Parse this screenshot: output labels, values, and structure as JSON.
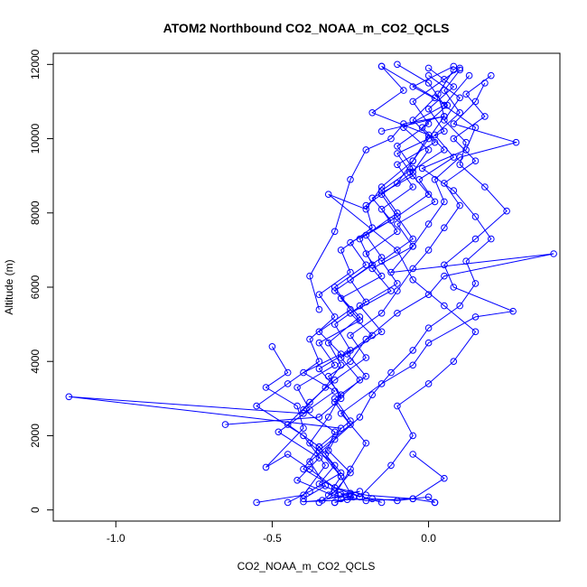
{
  "chart_data": {
    "type": "line",
    "title": "ATOM2 Northbound CO2_NOAA_m_CO2_QCLS",
    "xlabel": "CO2_NOAA_m_CO2_QCLS",
    "ylabel": "Altitude (m)",
    "xlim": [
      -1.2,
      0.42
    ],
    "ylim": [
      -300,
      12300
    ],
    "x_ticks": [
      -1.0,
      -0.5,
      0.0
    ],
    "x_tick_labels": [
      "-1.0",
      "-0.5",
      "0.0"
    ],
    "y_ticks": [
      0,
      2000,
      4000,
      6000,
      8000,
      10000,
      12000
    ],
    "y_tick_labels": [
      "0",
      "2000",
      "4000",
      "6000",
      "8000",
      "10000",
      "12000"
    ],
    "grid": false,
    "marker": "open-circle",
    "line_color": "#0000ff",
    "series": [
      {
        "values": [
          [
            -0.3,
            200
          ],
          [
            -0.25,
            350
          ],
          [
            -0.35,
            700
          ],
          [
            -0.3,
            1200
          ],
          [
            -0.38,
            1800
          ],
          [
            -0.32,
            2500
          ],
          [
            -0.28,
            3100
          ],
          [
            -0.35,
            3800
          ],
          [
            -0.25,
            4300
          ],
          [
            -0.3,
            5000
          ],
          [
            -0.2,
            5600
          ],
          [
            -0.25,
            6200
          ],
          [
            -0.15,
            6800
          ],
          [
            -0.2,
            7400
          ],
          [
            -0.1,
            8000
          ],
          [
            -0.15,
            8600
          ],
          [
            -0.05,
            9200
          ],
          [
            -0.1,
            9800
          ],
          [
            0.0,
            10400
          ],
          [
            -0.05,
            11000
          ],
          [
            0.05,
            11600
          ],
          [
            0.1,
            11900
          ]
        ]
      },
      {
        "values": [
          [
            0.02,
            200
          ],
          [
            -0.05,
            300
          ],
          [
            -0.2,
            400
          ],
          [
            -0.3,
            600
          ],
          [
            -0.4,
            1100
          ],
          [
            -0.35,
            1700
          ],
          [
            -0.45,
            2300
          ],
          [
            -0.38,
            2900
          ],
          [
            -0.3,
            3500
          ],
          [
            -0.2,
            4100
          ],
          [
            -0.25,
            4700
          ],
          [
            -0.15,
            5300
          ],
          [
            -0.1,
            5900
          ],
          [
            -0.05,
            6500
          ],
          [
            0.0,
            7000
          ],
          [
            0.05,
            7600
          ],
          [
            0.1,
            8200
          ],
          [
            0.05,
            8800
          ],
          [
            0.15,
            9400
          ],
          [
            0.08,
            10000
          ],
          [
            0.18,
            10600
          ],
          [
            0.12,
            11200
          ],
          [
            0.2,
            11700
          ]
        ]
      },
      {
        "values": [
          [
            -0.15,
            200
          ],
          [
            -0.25,
            450
          ],
          [
            -0.28,
            900
          ],
          [
            -0.33,
            1500
          ],
          [
            -0.3,
            2100
          ],
          [
            -0.4,
            2700
          ],
          [
            -0.33,
            3300
          ],
          [
            -0.28,
            3900
          ],
          [
            -0.32,
            4500
          ],
          [
            -0.22,
            5200
          ],
          [
            -0.3,
            5900
          ],
          [
            -0.18,
            6600
          ],
          [
            -0.22,
            7300
          ],
          [
            -0.1,
            7900
          ],
          [
            -0.15,
            8500
          ],
          [
            -0.05,
            9100
          ],
          [
            0.0,
            9700
          ],
          [
            -0.08,
            10300
          ],
          [
            0.05,
            10900
          ],
          [
            0.0,
            11500
          ],
          [
            -0.1,
            12000
          ]
        ]
      },
      {
        "values": [
          [
            -0.35,
            200
          ],
          [
            -0.3,
            500
          ],
          [
            -0.25,
            1000
          ],
          [
            -0.32,
            1600
          ],
          [
            -0.28,
            2200
          ],
          [
            -1.15,
            3050
          ],
          [
            -0.4,
            2600
          ],
          [
            -0.3,
            3200
          ],
          [
            -0.4,
            3700
          ],
          [
            -0.28,
            4200
          ],
          [
            -0.35,
            4800
          ],
          [
            -0.25,
            5400
          ],
          [
            -0.3,
            6000
          ],
          [
            -0.2,
            6600
          ],
          [
            -0.25,
            7200
          ],
          [
            -0.12,
            7800
          ],
          [
            -0.18,
            8400
          ],
          [
            -0.05,
            9000
          ],
          [
            -0.1,
            9600
          ],
          [
            0.05,
            10200
          ],
          [
            0.0,
            10800
          ],
          [
            0.08,
            11400
          ],
          [
            0.0,
            11900
          ]
        ]
      },
      {
        "values": [
          [
            -0.55,
            200
          ],
          [
            -0.4,
            400
          ],
          [
            -0.33,
            1200
          ],
          [
            -0.4,
            2000
          ],
          [
            -0.55,
            2800
          ],
          [
            -0.45,
            3400
          ],
          [
            -0.35,
            4000
          ],
          [
            -0.38,
            4600
          ],
          [
            -0.3,
            5200
          ],
          [
            -0.35,
            5800
          ],
          [
            -0.25,
            6400
          ],
          [
            -0.28,
            7000
          ],
          [
            -0.18,
            7600
          ],
          [
            -0.2,
            8200
          ],
          [
            -0.1,
            8800
          ],
          [
            -0.05,
            9400
          ],
          [
            0.0,
            10000
          ],
          [
            0.05,
            10600
          ],
          [
            0.03,
            11200
          ],
          [
            0.08,
            11850
          ]
        ]
      },
      {
        "values": [
          [
            -0.65,
            2300
          ],
          [
            -0.35,
            2500
          ],
          [
            -0.28,
            3000
          ],
          [
            -0.32,
            3600
          ],
          [
            -0.25,
            4000
          ],
          [
            -0.2,
            4600
          ],
          [
            -0.1,
            5300
          ],
          [
            0.0,
            5800
          ],
          [
            0.05,
            6300
          ],
          [
            0.4,
            6900
          ],
          [
            -0.12,
            6400
          ],
          [
            -0.05,
            7100
          ],
          [
            0.0,
            7700
          ],
          [
            0.05,
            8300
          ],
          [
            0.02,
            8900
          ],
          [
            0.1,
            9500
          ],
          [
            0.28,
            9900
          ],
          [
            0.08,
            10400
          ],
          [
            0.15,
            11000
          ],
          [
            0.18,
            11500
          ]
        ]
      },
      {
        "values": [
          [
            -0.05,
            1500
          ],
          [
            0.05,
            850
          ],
          [
            -0.05,
            300
          ],
          [
            -0.2,
            250
          ],
          [
            -0.3,
            400
          ],
          [
            -0.25,
            1100
          ],
          [
            -0.2,
            1800
          ],
          [
            -0.28,
            2600
          ],
          [
            -0.15,
            3400
          ],
          [
            -0.05,
            3900
          ],
          [
            0.0,
            4500
          ],
          [
            0.15,
            5200
          ],
          [
            0.27,
            5350
          ],
          [
            0.08,
            6000
          ],
          [
            0.05,
            6600
          ],
          [
            0.15,
            7300
          ],
          [
            0.25,
            8050
          ],
          [
            0.18,
            8700
          ],
          [
            0.1,
            9300
          ],
          [
            0.12,
            9900
          ],
          [
            0.05,
            10500
          ],
          [
            0.1,
            11100
          ],
          [
            0.0,
            11700
          ]
        ]
      },
      {
        "values": [
          [
            -0.5,
            4400
          ],
          [
            -0.45,
            3700
          ],
          [
            -0.52,
            3300
          ],
          [
            -0.42,
            2800
          ],
          [
            -0.4,
            2200
          ],
          [
            -0.52,
            1150
          ],
          [
            -0.45,
            1500
          ],
          [
            -0.38,
            1100
          ],
          [
            -0.3,
            600
          ],
          [
            -0.22,
            350
          ],
          [
            -0.12,
            1200
          ],
          [
            -0.05,
            2000
          ],
          [
            -0.1,
            2800
          ],
          [
            0.0,
            3400
          ],
          [
            0.08,
            4000
          ],
          [
            0.15,
            4800
          ],
          [
            0.05,
            5500
          ],
          [
            -0.05,
            6200
          ],
          [
            -0.1,
            7000
          ],
          [
            -0.32,
            8500
          ],
          [
            -0.2,
            8100
          ],
          [
            -0.15,
            8700
          ],
          [
            -0.05,
            9400
          ],
          [
            0.0,
            10100
          ],
          [
            -0.18,
            10700
          ],
          [
            -0.08,
            11300
          ],
          [
            -0.15,
            11950
          ]
        ]
      },
      {
        "values": [
          [
            -0.4,
            300
          ],
          [
            -0.33,
            650
          ],
          [
            -0.38,
            1300
          ],
          [
            -0.3,
            1900
          ],
          [
            -0.22,
            2500
          ],
          [
            -0.18,
            3100
          ],
          [
            -0.12,
            3700
          ],
          [
            -0.05,
            4300
          ],
          [
            0.0,
            4900
          ],
          [
            0.1,
            5500
          ],
          [
            0.15,
            6100
          ],
          [
            0.12,
            6700
          ],
          [
            0.2,
            7300
          ],
          [
            0.15,
            7900
          ],
          [
            0.08,
            8600
          ],
          [
            -0.02,
            9200
          ],
          [
            0.12,
            9700
          ],
          [
            0.15,
            10300
          ],
          [
            0.05,
            10900
          ],
          [
            0.13,
            11700
          ]
        ]
      },
      {
        "values": [
          [
            -0.28,
            300
          ],
          [
            -0.42,
            800
          ],
          [
            -0.35,
            1400
          ],
          [
            -0.48,
            2100
          ],
          [
            -0.38,
            2700
          ],
          [
            -0.42,
            3300
          ],
          [
            -0.3,
            3900
          ],
          [
            -0.35,
            4500
          ],
          [
            -0.22,
            5100
          ],
          [
            -0.28,
            5700
          ],
          [
            -0.15,
            6300
          ],
          [
            -0.2,
            6900
          ],
          [
            -0.1,
            7500
          ],
          [
            -0.15,
            8100
          ],
          [
            -0.05,
            8700
          ],
          [
            -0.1,
            9300
          ],
          [
            0.02,
            9900
          ],
          [
            -0.05,
            10500
          ],
          [
            0.02,
            11100
          ],
          [
            -0.15,
            11950
          ]
        ]
      },
      {
        "values": [
          [
            -0.32,
            400
          ],
          [
            -0.28,
            900
          ],
          [
            -0.35,
            1600
          ],
          [
            -0.25,
            2300
          ],
          [
            -0.3,
            2900
          ],
          [
            -0.22,
            3500
          ],
          [
            -0.28,
            4100
          ],
          [
            -0.18,
            4700
          ],
          [
            -0.25,
            5300
          ],
          [
            -0.12,
            5900
          ],
          [
            -0.18,
            6500
          ],
          [
            -0.05,
            7100
          ],
          [
            -0.1,
            7700
          ],
          [
            0.02,
            8300
          ],
          [
            -0.03,
            8900
          ],
          [
            0.08,
            9500
          ],
          [
            0.02,
            10100
          ],
          [
            0.1,
            10700
          ],
          [
            0.05,
            11300
          ],
          [
            0.1,
            11850
          ]
        ]
      },
      {
        "values": [
          [
            -0.45,
            200
          ],
          [
            -0.38,
            500
          ],
          [
            -0.28,
            1000
          ],
          [
            -0.35,
            1700
          ],
          [
            -0.25,
            2400
          ],
          [
            -0.3,
            3000
          ],
          [
            -0.2,
            3600
          ],
          [
            -0.26,
            4200
          ],
          [
            -0.15,
            4800
          ],
          [
            -0.22,
            5500
          ],
          [
            -0.1,
            6100
          ],
          [
            -0.15,
            6700
          ],
          [
            -0.05,
            7300
          ],
          [
            -0.1,
            7900
          ],
          [
            0.0,
            8500
          ],
          [
            -0.06,
            9100
          ],
          [
            0.05,
            9700
          ],
          [
            -0.02,
            10300
          ],
          [
            0.06,
            10900
          ],
          [
            -0.05,
            11400
          ],
          [
            0.08,
            11950
          ]
        ]
      },
      {
        "values": [
          [
            -0.35,
            5400
          ],
          [
            -0.38,
            6300
          ],
          [
            -0.3,
            7500
          ],
          [
            -0.25,
            8900
          ],
          [
            -0.2,
            9700
          ],
          [
            -0.12,
            10000
          ],
          [
            -0.08,
            10400
          ],
          [
            0.05,
            10600
          ],
          [
            -0.15,
            10200
          ]
        ]
      },
      {
        "values": [
          [
            -0.3,
            200
          ],
          [
            -0.26,
            280
          ],
          [
            -0.24,
            350
          ],
          [
            -0.28,
            420
          ],
          [
            -0.22,
            500
          ],
          [
            -0.34,
            260
          ],
          [
            -0.4,
            220
          ],
          [
            -0.18,
            300
          ],
          [
            -0.1,
            250
          ],
          [
            0.0,
            350
          ],
          [
            0.02,
            200
          ]
        ]
      }
    ]
  }
}
